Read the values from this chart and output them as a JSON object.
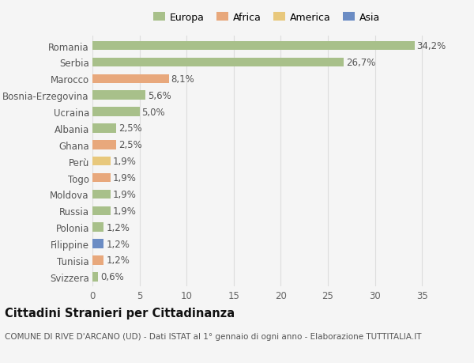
{
  "title": "Cittadini Stranieri per Cittadinanza",
  "subtitle": "COMUNE DI RIVE D'ARCANO (UD) - Dati ISTAT al 1° gennaio di ogni anno - Elaborazione TUTTITALIA.IT",
  "countries": [
    "Romania",
    "Serbia",
    "Marocco",
    "Bosnia-Erzegovina",
    "Ucraina",
    "Albania",
    "Ghana",
    "Perù",
    "Togo",
    "Moldova",
    "Russia",
    "Polonia",
    "Filippine",
    "Tunisia",
    "Svizzera"
  ],
  "values": [
    34.2,
    26.7,
    8.1,
    5.6,
    5.0,
    2.5,
    2.5,
    1.9,
    1.9,
    1.9,
    1.9,
    1.2,
    1.2,
    1.2,
    0.6
  ],
  "continents": [
    "Europa",
    "Europa",
    "Africa",
    "Europa",
    "Europa",
    "Europa",
    "Africa",
    "America",
    "Africa",
    "Europa",
    "Europa",
    "Europa",
    "Asia",
    "Africa",
    "Europa"
  ],
  "continent_colors": {
    "Europa": "#a8c08a",
    "Africa": "#e8a87c",
    "America": "#e8c87c",
    "Asia": "#6b8cc4"
  },
  "legend_order": [
    "Europa",
    "Africa",
    "America",
    "Asia"
  ],
  "legend_colors": [
    "#a8c08a",
    "#e8a87c",
    "#e8c87c",
    "#6b8cc4"
  ],
  "xlabel_ticks": [
    0,
    5,
    10,
    15,
    20,
    25,
    30,
    35
  ],
  "xlim": [
    0,
    37
  ],
  "background_color": "#f5f5f5",
  "grid_color": "#dddddd",
  "bar_height": 0.55,
  "label_fontsize": 8.5,
  "title_fontsize": 10.5,
  "subtitle_fontsize": 7.5
}
